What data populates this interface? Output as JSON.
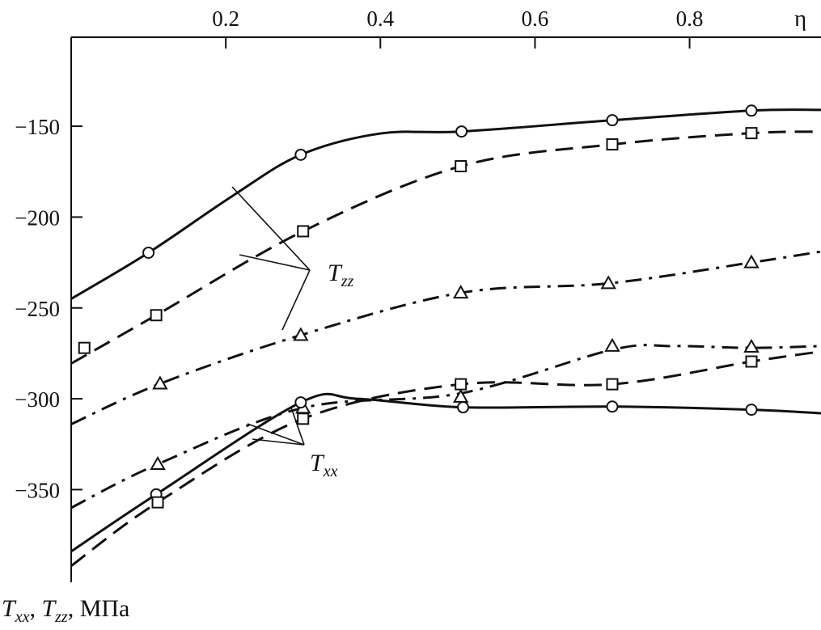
{
  "chart_data": {
    "type": "line",
    "title": "",
    "xlabel": "η",
    "ylabel": "Txx, Tzz, МПа",
    "ylabel_parts": {
      "t1": "T",
      "s1": "xx",
      "sep1": ", ",
      "t2": "T",
      "s2": "zz",
      "unit": ", МПа"
    },
    "x_axis_position": "top",
    "xlim": [
      0,
      0.97
    ],
    "ylim": [
      -401,
      -101
    ],
    "x_ticks": [
      0.2,
      0.4,
      0.6,
      0.8
    ],
    "x_tick_labels": [
      "0.2",
      "0.4",
      "0.6",
      "0.8"
    ],
    "y_ticks": [
      -150,
      -200,
      -250,
      -300,
      -350
    ],
    "y_tick_labels": [
      "−150",
      "−200",
      "−250",
      "−300",
      "−350"
    ],
    "grid": false,
    "annotations": [
      {
        "text": "T",
        "sub": "zz",
        "group": "Tzz"
      },
      {
        "text": "T",
        "sub": "xx",
        "group": "Txx"
      }
    ],
    "series": [
      {
        "name": "Tzz circles",
        "group": "Tzz",
        "marker": "circle",
        "line": "solid",
        "curve_x": [
          0,
          0.1,
          0.21,
          0.297,
          0.4,
          0.505,
          0.7,
          0.88,
          0.97
        ],
        "curve_y": [
          -245,
          -219.6,
          -188,
          -165.7,
          -154,
          -152.9,
          -146.7,
          -141.4,
          -141
        ],
        "points_x": [
          0.1,
          0.297,
          0.505,
          0.7,
          0.88
        ],
        "points_y": [
          -219.6,
          -165.7,
          -152.9,
          -146.7,
          -141.4
        ]
      },
      {
        "name": "Tzz squares",
        "group": "Tzz",
        "marker": "square",
        "line": "dashed",
        "curve_x": [
          0,
          0.11,
          0.3,
          0.504,
          0.7,
          0.88,
          0.97
        ],
        "curve_y": [
          -280.6,
          -254,
          -207.8,
          -172,
          -160,
          -153.8,
          -153
        ],
        "points_x": [
          0.017,
          0.11,
          0.3,
          0.504,
          0.7,
          0.88
        ],
        "points_y": [
          -272,
          -254,
          -207.8,
          -172,
          -160,
          -153.8
        ]
      },
      {
        "name": "Tzz triangles",
        "group": "Tzz",
        "marker": "triangle",
        "line": "dashdot",
        "curve_x": [
          0,
          0.115,
          0.297,
          0.504,
          0.695,
          0.88,
          0.97
        ],
        "curve_y": [
          -314,
          -291.7,
          -265,
          -241.7,
          -236.5,
          -225,
          -219
        ],
        "points_x": [
          0.115,
          0.297,
          0.504,
          0.695,
          0.88
        ],
        "points_y": [
          -291.7,
          -265,
          -241.7,
          -236.5,
          -225
        ]
      },
      {
        "name": "Txx triangles",
        "group": "Txx",
        "marker": "triangle",
        "line": "dashdot",
        "curve_x": [
          0,
          0.112,
          0.3,
          0.504,
          0.7,
          0.78,
          0.88,
          0.97
        ],
        "curve_y": [
          -360,
          -336,
          -305,
          -297,
          -273,
          -271,
          -272,
          -271
        ],
        "points_x": [
          0.112,
          0.3,
          0.504,
          0.7,
          0.88
        ],
        "points_y": [
          -336,
          -305,
          -299,
          -271,
          -271.5
        ]
      },
      {
        "name": "Txx circles",
        "group": "Txx",
        "marker": "circle",
        "line": "solid",
        "curve_x": [
          0,
          0.11,
          0.297,
          0.37,
          0.507,
          0.7,
          0.88,
          0.97
        ],
        "curve_y": [
          -384,
          -352.6,
          -302,
          -300,
          -304.7,
          -304.3,
          -306,
          -308
        ],
        "points_x": [
          0.11,
          0.297,
          0.507,
          0.7,
          0.88
        ],
        "points_y": [
          -352.6,
          -302,
          -304.7,
          -304.3,
          -306
        ]
      },
      {
        "name": "Txx squares",
        "group": "Txx",
        "marker": "square",
        "line": "dashed",
        "curve_x": [
          0,
          0.112,
          0.3,
          0.504,
          0.7,
          0.88,
          0.97
        ],
        "curve_y": [
          -392,
          -357,
          -311,
          -292,
          -292,
          -279.5,
          -274
        ],
        "points_x": [
          0.112,
          0.3,
          0.504,
          0.7,
          0.88
        ],
        "points_y": [
          -357,
          -311,
          -292,
          -292,
          -279.5
        ]
      }
    ]
  }
}
